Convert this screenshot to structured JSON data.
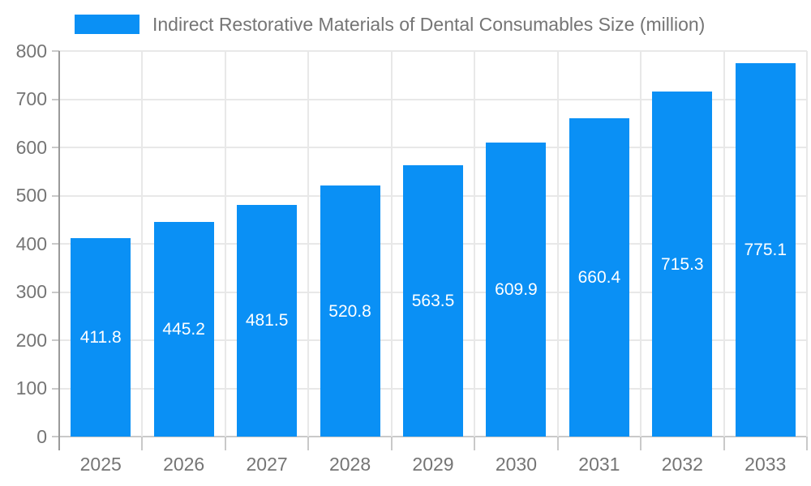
{
  "chart_data": {
    "type": "bar",
    "title": "",
    "legend_label": "Indirect Restorative Materials of Dental Consumables Size (million)",
    "legend_position": "top-left",
    "categories": [
      "2025",
      "2026",
      "2027",
      "2028",
      "2029",
      "2030",
      "2031",
      "2032",
      "2033"
    ],
    "series": [
      {
        "name": "Indirect Restorative Materials of Dental Consumables Size (million)",
        "values": [
          411.8,
          445.2,
          481.5,
          520.8,
          563.5,
          609.9,
          660.4,
          715.3,
          775.1
        ]
      }
    ],
    "value_labels": [
      "411.8",
      "445.2",
      "481.5",
      "520.8",
      "563.5",
      "609.9",
      "660.4",
      "715.3",
      "775.1"
    ],
    "xlabel": "",
    "ylabel": "",
    "ylim": [
      0,
      800
    ],
    "ytick_step": 100,
    "ytick_labels": [
      "0",
      "100",
      "200",
      "300",
      "400",
      "500",
      "600",
      "700",
      "800"
    ],
    "grid": true
  },
  "colors": {
    "bar": "#0a90f5",
    "value_label": "#ffffff",
    "axis_text": "#757575",
    "legend_text": "#757575",
    "grid": "#e8e8e8",
    "baseline": "#c9c9c9",
    "tick": "#c9c9c9",
    "y_axis_line": "#9a9a9a",
    "background": "#ffffff"
  }
}
